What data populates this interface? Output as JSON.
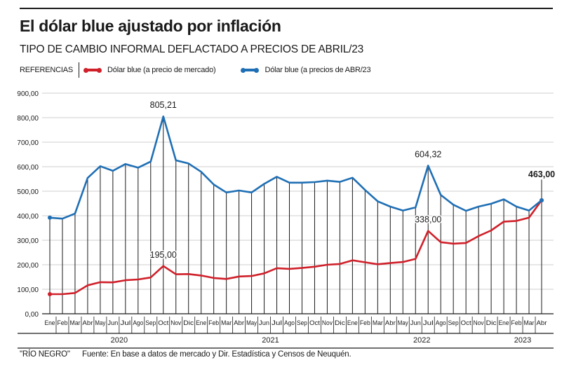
{
  "header": {
    "title": "El dólar blue ajustado por inflación",
    "subtitle": "TIPO DE CAMBIO INFORMAL DEFLACTADO A PRECIOS DE ABRIL/23"
  },
  "legend": {
    "label": "REFERENCIAS",
    "items": [
      {
        "label": "Dólar blue (a precio de mercado)",
        "color": "#d0202a"
      },
      {
        "label": "Dólar blue (a precios de ABR/23",
        "color": "#1f6fb5"
      }
    ]
  },
  "footer": {
    "credit": "\"RÍO NEGRO\"",
    "source": "Fuente: En base a datos de mercado y Dir. Estadística y Censos de Neuquén."
  },
  "chart_data": {
    "type": "line",
    "title": "El dólar blue ajustado por inflación",
    "subtitle": "TIPO DE CAMBIO INFORMAL DEFLACTADO A PRECIOS DE ABRIL/23",
    "xlabel": "",
    "ylabel": "",
    "ylim": [
      0,
      900
    ],
    "yticks": [
      0,
      100,
      200,
      300,
      400,
      500,
      600,
      700,
      800,
      900
    ],
    "ytick_labels": [
      "0,00",
      "100,00",
      "200,00",
      "300,00",
      "400,00",
      "500,00",
      "600,00",
      "700,00",
      "800,00",
      "900,00"
    ],
    "grid": true,
    "legend_position": "top-left",
    "categories": [
      "Ene",
      "Feb",
      "Mar",
      "Abr",
      "May",
      "Jun",
      "Jul",
      "Ago",
      "Sep",
      "Oct",
      "Nov",
      "Dic",
      "Ene",
      "Feb",
      "Mar",
      "Abr",
      "May",
      "Jun",
      "Jul",
      "Ago",
      "Sep",
      "Oct",
      "Nov",
      "Dic",
      "Ene",
      "Feb",
      "Mar",
      "Abr",
      "May",
      "Jun",
      "Jul",
      "Ago",
      "Sep",
      "Oct",
      "Nov",
      "Dic",
      "Ene",
      "Feb",
      "Mar",
      "Abr"
    ],
    "years": [
      {
        "label": "2020",
        "start": 0,
        "end": 11
      },
      {
        "label": "2021",
        "start": 12,
        "end": 23
      },
      {
        "label": "2022",
        "start": 24,
        "end": 35
      },
      {
        "label": "2023",
        "start": 36,
        "end": 39
      }
    ],
    "series": [
      {
        "name": "Dólar blue (a precio de mercado)",
        "color": "#d0202a",
        "values": [
          80,
          80,
          85,
          116,
          129,
          128,
          137,
          140,
          148,
          195,
          161,
          162,
          156,
          146,
          142,
          152,
          154,
          165,
          186,
          183,
          187,
          192,
          200,
          203,
          218,
          210,
          202,
          207,
          211,
          224,
          338,
          292,
          286,
          289,
          317,
          340,
          376,
          379,
          392,
          463
        ]
      },
      {
        "name": "Dólar blue (a precios de ABR/23",
        "color": "#1f6fb5",
        "values": [
          392,
          388,
          409,
          554,
          602,
          583,
          611,
          596,
          621,
          805.21,
          626,
          613,
          579,
          527,
          495,
          503,
          495,
          530,
          559,
          535,
          535,
          537,
          543,
          538,
          555,
          505,
          459,
          437,
          421,
          434,
          604.32,
          485,
          445,
          420,
          437,
          449,
          467,
          437,
          421,
          463
        ]
      }
    ],
    "annotations": [
      {
        "text": "805,21",
        "series": 1,
        "index": 9
      },
      {
        "text": "195,00",
        "series": 0,
        "index": 9
      },
      {
        "text": "604,32",
        "series": 1,
        "index": 30
      },
      {
        "text": "338,00",
        "series": 0,
        "index": 30
      },
      {
        "text": "463,00",
        "series": 0,
        "index": 39
      }
    ]
  }
}
